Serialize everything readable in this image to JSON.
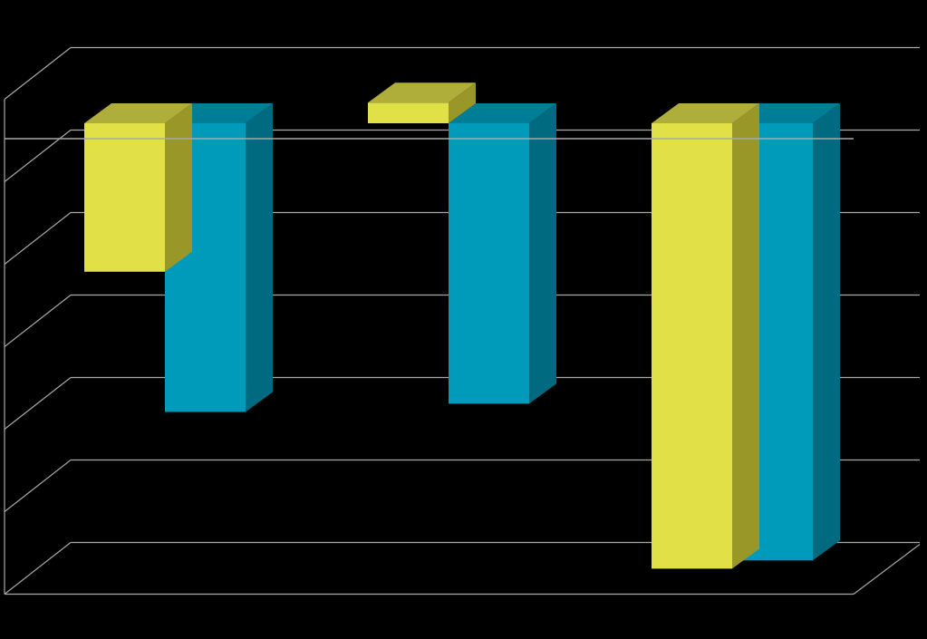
{
  "chart_data": {
    "type": "bar",
    "style": "3d-clustered-column",
    "categories": [
      "",
      "",
      ""
    ],
    "series": [
      {
        "values": [
          -3.6,
          0.5,
          -10.8
        ]
      },
      {
        "values": [
          -7.0,
          -6.8,
          -10.6
        ]
      }
    ],
    "ylim": [
      -10.8,
      1.2
    ],
    "gridlines": [
      1,
      -1,
      -3,
      -5,
      -7,
      -9,
      -11
    ],
    "grid": true,
    "tick_labels_shown": false,
    "legend": "none",
    "colors": {
      "background": "#000000",
      "series_front": [
        "#E2E047",
        "#009BBB"
      ],
      "series_top": [
        "#B0AE3A",
        "#007E98"
      ],
      "series_side": [
        "#999727",
        "#006A80"
      ],
      "grid": "#A8A8A8"
    }
  }
}
